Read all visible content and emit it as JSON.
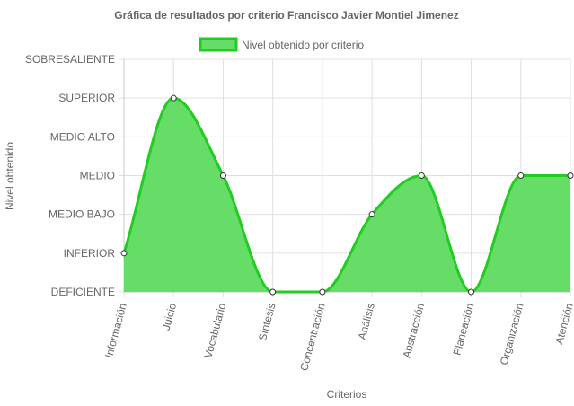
{
  "chart_data": {
    "type": "area",
    "title": "Gráfica de resultados por criterio Francisco Javier Montiel Jimenez",
    "xlabel": "Criterios",
    "ylabel": "Nivel obtenido",
    "categories": [
      "Información",
      "Juicio",
      "Vocabulario",
      "Síntesis",
      "Concentración",
      "Análisis",
      "Abstracción",
      "Planeación",
      "Organización",
      "Atención"
    ],
    "y_levels": [
      "DEFICIENTE",
      "INFERIOR",
      "MEDIO BAJO",
      "MEDIO",
      "MEDIO ALTO",
      "SUPERIOR",
      "SOBRESALIENTE"
    ],
    "series": [
      {
        "name": "Nivel obtenido por criterio",
        "values": [
          1,
          5,
          3,
          0,
          0,
          2,
          3,
          0,
          3,
          3
        ]
      }
    ],
    "ylim": [
      0,
      6
    ],
    "grid": true,
    "legend": "top",
    "colors": {
      "fill": "#66dd66",
      "stroke": "#22cc22",
      "grid": "#e0e0e0",
      "point_fill": "#ffffff",
      "point_stroke": "#333333"
    }
  }
}
